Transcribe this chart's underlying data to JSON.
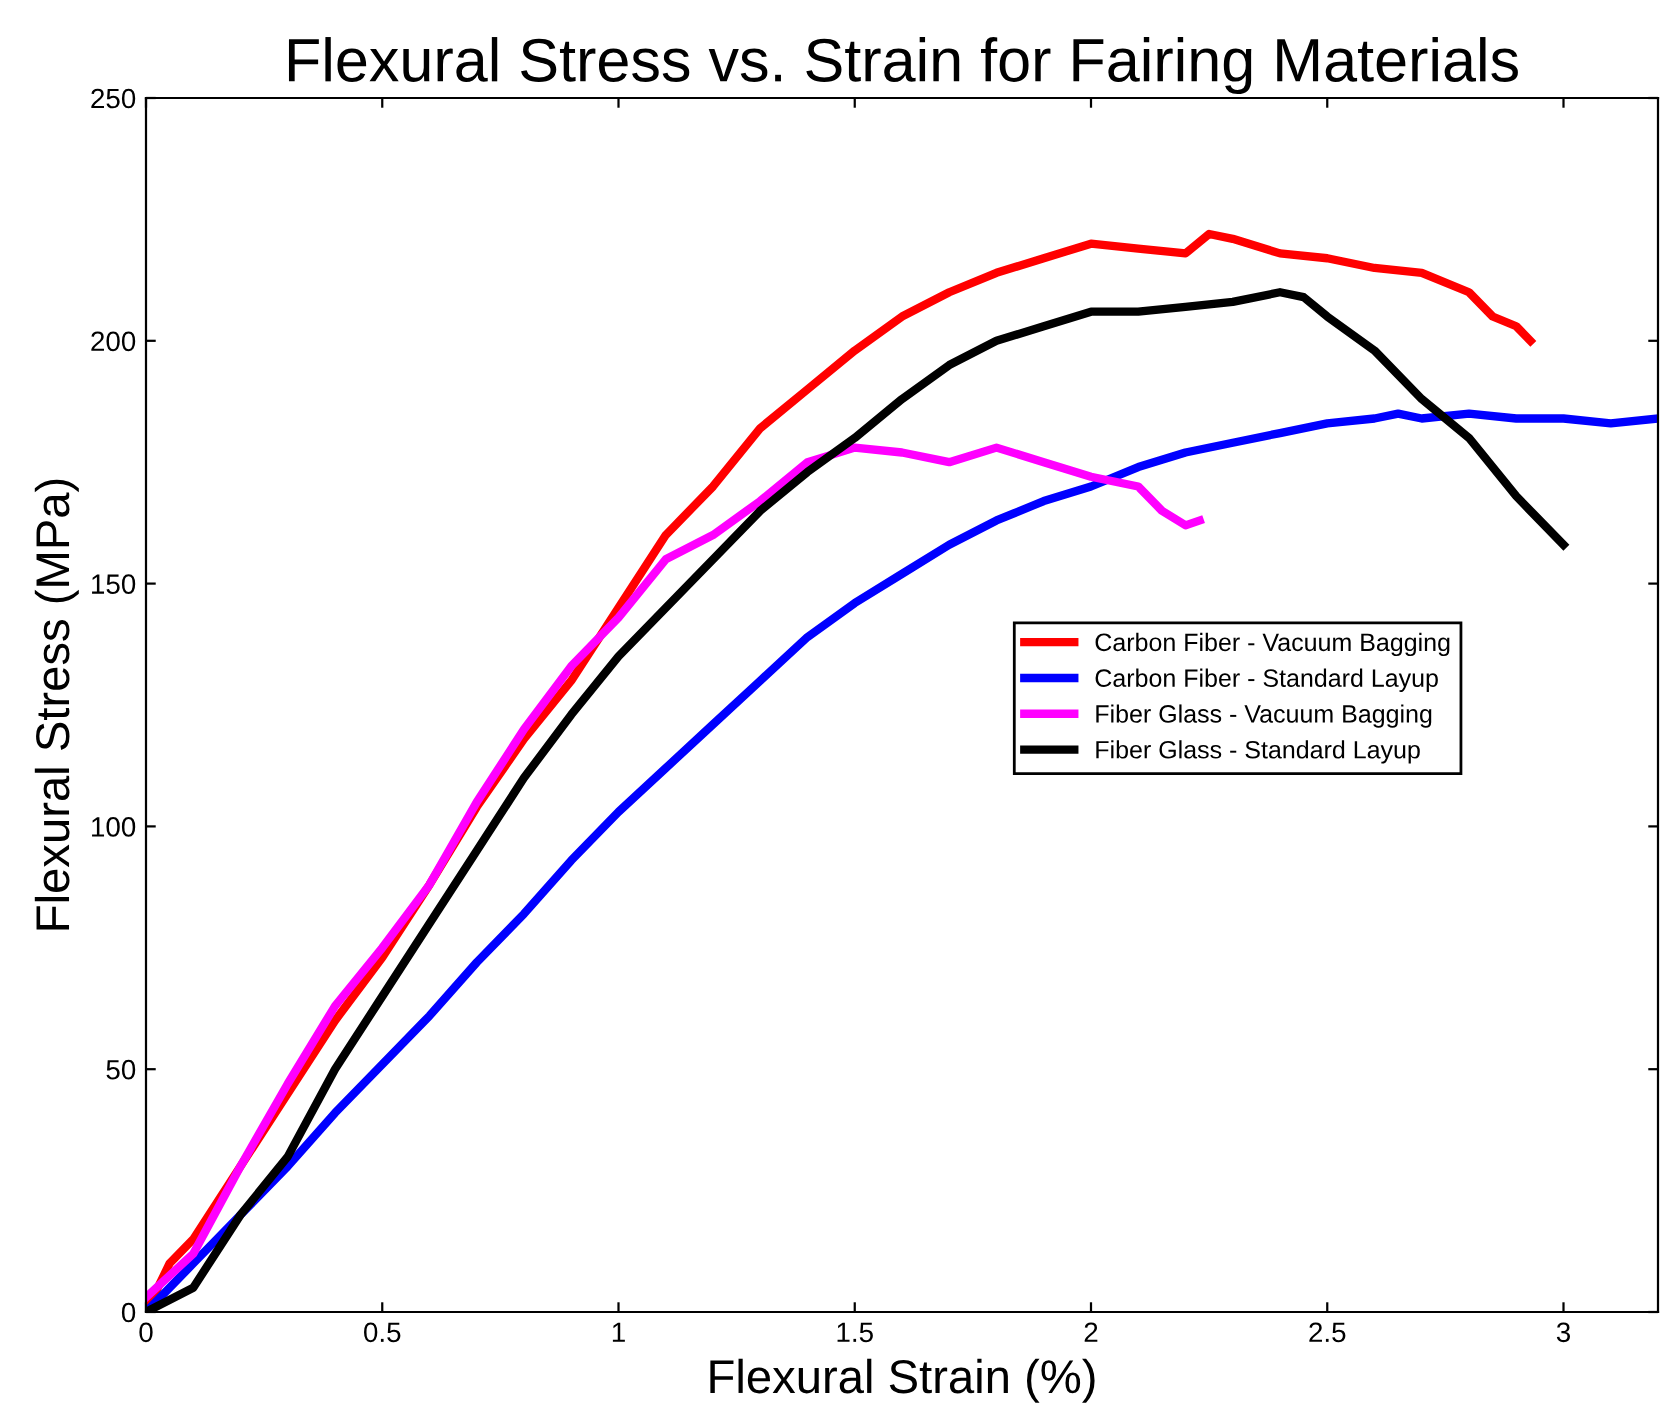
{
  "chart_data": {
    "type": "line",
    "title": "Flexural Stress vs. Strain for Fairing Materials",
    "xlabel": "Flexural Strain (%)",
    "ylabel": "Flexural Stress (MPa)",
    "xlim": [
      0,
      3.2
    ],
    "xticks": [
      0,
      0.5,
      1,
      1.5,
      2,
      2.5,
      3
    ],
    "ylim": [
      0,
      250
    ],
    "yticks": [
      0,
      50,
      100,
      150,
      200,
      250
    ],
    "grid": false,
    "legend": "right",
    "series": [
      {
        "name": "Carbon Fiber - Vacuum Bagging",
        "color": "#ff0000",
        "x": [
          0,
          0.05,
          0.1,
          0.2,
          0.3,
          0.4,
          0.5,
          0.6,
          0.7,
          0.8,
          0.9,
          1.0,
          1.1,
          1.2,
          1.3,
          1.4,
          1.5,
          1.6,
          1.7,
          1.8,
          1.9,
          2.0,
          2.1,
          2.2,
          2.25,
          2.3,
          2.4,
          2.5,
          2.6,
          2.7,
          2.8,
          2.85,
          2.9,
          2.93
        ],
        "values": [
          0,
          10,
          15,
          30,
          45,
          60,
          73,
          88,
          104,
          118,
          130,
          145,
          160,
          170,
          182,
          190,
          198,
          205,
          210,
          214,
          217,
          220,
          219,
          218,
          222,
          221,
          218,
          217,
          215,
          214,
          210,
          205,
          203,
          200
        ]
      },
      {
        "name": "Carbon Fiber - Standard Layup",
        "color": "#0000ff",
        "x": [
          0,
          0.1,
          0.2,
          0.3,
          0.4,
          0.5,
          0.6,
          0.7,
          0.8,
          0.9,
          1.0,
          1.1,
          1.2,
          1.3,
          1.4,
          1.5,
          1.6,
          1.7,
          1.8,
          1.9,
          2.0,
          2.1,
          2.2,
          2.3,
          2.4,
          2.5,
          2.6,
          2.65,
          2.7,
          2.8,
          2.9,
          3.0,
          3.1,
          3.2
        ],
        "values": [
          0,
          10,
          20,
          30,
          41,
          51,
          61,
          72,
          82,
          93,
          103,
          112,
          121,
          130,
          139,
          146,
          152,
          158,
          163,
          167,
          170,
          174,
          177,
          179,
          181,
          183,
          184,
          185,
          184,
          185,
          184,
          184,
          183,
          184
        ]
      },
      {
        "name": "Fiber Glass - Vacuum Bagging",
        "color": "#ff00ff",
        "x": [
          0,
          0.1,
          0.2,
          0.3,
          0.4,
          0.5,
          0.6,
          0.7,
          0.8,
          0.9,
          1.0,
          1.1,
          1.2,
          1.3,
          1.4,
          1.5,
          1.6,
          1.7,
          1.8,
          1.9,
          2.0,
          2.1,
          2.15,
          2.2,
          2.23
        ],
        "values": [
          3,
          12,
          30,
          47,
          63,
          75,
          88,
          105,
          120,
          133,
          143,
          155,
          160,
          167,
          175,
          178,
          177,
          175,
          178,
          175,
          172,
          170,
          165,
          162,
          163
        ]
      },
      {
        "name": "Fiber Glass - Standard Layup",
        "color": "#000000",
        "x": [
          0,
          0.1,
          0.2,
          0.3,
          0.4,
          0.5,
          0.6,
          0.7,
          0.8,
          0.9,
          1.0,
          1.1,
          1.2,
          1.3,
          1.4,
          1.5,
          1.6,
          1.7,
          1.8,
          1.9,
          2.0,
          2.1,
          2.2,
          2.3,
          2.4,
          2.45,
          2.5,
          2.6,
          2.7,
          2.8,
          2.9,
          3.0
        ],
        "values": [
          0,
          5,
          20,
          32,
          50,
          65,
          80,
          95,
          110,
          123,
          135,
          145,
          155,
          165,
          173,
          180,
          188,
          195,
          200,
          203,
          206,
          206,
          207,
          208,
          210,
          209,
          205,
          198,
          188,
          180,
          168,
          158
        ]
      }
    ]
  }
}
